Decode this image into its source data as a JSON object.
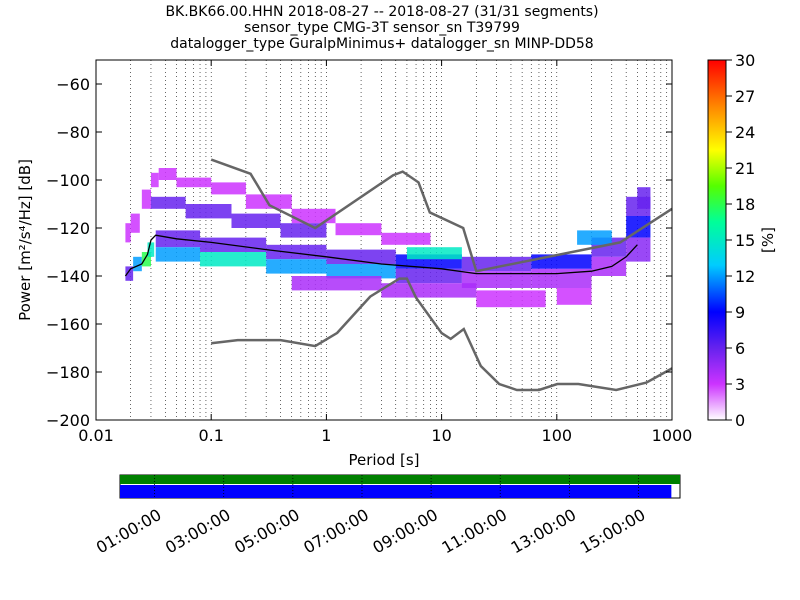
{
  "chart_data": [
    {
      "type": "heatmap",
      "title_lines": [
        "BK.BK66.00.HHN   2018-08-27 -- 2018-08-27  (31/31 segments)",
        "sensor_type CMG-3T sensor_sn T39799",
        "datalogger_type GuralpMinimus+ datalogger_sn MINP-DD58"
      ],
      "xlabel": "Period [s]",
      "ylabel": "Power [m²/s⁴/Hz] [dB]",
      "x_scale": "log",
      "xlim": [
        0.01,
        1000
      ],
      "ylim": [
        -200,
        -50
      ],
      "x_tick_labels": [
        "0.01",
        "0.1",
        "1",
        "10",
        "100",
        "1000"
      ],
      "x_ticks": [
        0.01,
        0.1,
        1,
        10,
        100,
        1000
      ],
      "y_ticks": [
        -60,
        -80,
        -100,
        -120,
        -140,
        -160,
        -180,
        -200
      ],
      "y_tick_labels": [
        "−60",
        "−80",
        "−100",
        "−120",
        "−140",
        "−160",
        "−180",
        "−200"
      ],
      "grid": "dotted vertical lines",
      "colorbar": {
        "label": "[%]",
        "range": [
          0,
          30
        ],
        "ticks": [
          0,
          3,
          6,
          9,
          12,
          15,
          18,
          21,
          24,
          27,
          30
        ],
        "colormap": "pqlx"
      },
      "noise_models": [
        {
          "name": "NHNM",
          "color": "#666666",
          "points": [
            [
              0.1,
              -91.5
            ],
            [
              0.22,
              -97.4
            ],
            [
              0.32,
              -110.5
            ],
            [
              0.8,
              -120
            ],
            [
              3.8,
              -98
            ],
            [
              4.6,
              -96.5
            ],
            [
              6.3,
              -101
            ],
            [
              7.9,
              -113.5
            ],
            [
              15.4,
              -120
            ],
            [
              20,
              -138
            ],
            [
              354.8,
              -126
            ],
            [
              1000,
              -112
            ]
          ]
        },
        {
          "name": "NLNM",
          "color": "#666666",
          "points": [
            [
              0.1,
              -168
            ],
            [
              0.17,
              -166.7
            ],
            [
              0.4,
              -166.7
            ],
            [
              0.8,
              -169.2
            ],
            [
              1.24,
              -163.7
            ],
            [
              2.4,
              -148.6
            ],
            [
              4.3,
              -141.1
            ],
            [
              5,
              -141.1
            ],
            [
              6,
              -149
            ],
            [
              10,
              -163.8
            ],
            [
              12,
              -166.2
            ],
            [
              15.6,
              -162.1
            ],
            [
              21.9,
              -177.5
            ],
            [
              31.6,
              -185
            ],
            [
              45,
              -187.5
            ],
            [
              70,
              -187.5
            ],
            [
              101,
              -185
            ],
            [
              154,
              -185
            ],
            [
              328,
              -187.5
            ],
            [
              600,
              -184.4
            ],
            [
              1000,
              -178.5
            ]
          ]
        }
      ],
      "mode_line": {
        "color": "#000000",
        "points": [
          [
            0.018,
            -140
          ],
          [
            0.02,
            -137
          ],
          [
            0.025,
            -135
          ],
          [
            0.028,
            -131
          ],
          [
            0.03,
            -125
          ],
          [
            0.033,
            -123
          ],
          [
            0.05,
            -124.5
          ],
          [
            0.1,
            -126
          ],
          [
            0.3,
            -129
          ],
          [
            1,
            -132
          ],
          [
            3,
            -135
          ],
          [
            10,
            -137
          ],
          [
            20,
            -139
          ],
          [
            50,
            -139
          ],
          [
            100,
            -139
          ],
          [
            200,
            -138
          ],
          [
            300,
            -136
          ],
          [
            400,
            -132
          ],
          [
            500,
            -127
          ]
        ]
      },
      "psd_cells": [
        {
          "x0": 0.018,
          "x1": 0.021,
          "y0": -142,
          "y1": -136,
          "pct": 6
        },
        {
          "x0": 0.021,
          "x1": 0.025,
          "y0": -138,
          "y1": -132,
          "pct": 12
        },
        {
          "x0": 0.025,
          "x1": 0.03,
          "y0": -136,
          "y1": -130,
          "pct": 18
        },
        {
          "x0": 0.028,
          "x1": 0.032,
          "y0": -132,
          "y1": -126,
          "pct": 15
        },
        {
          "x0": 0.018,
          "x1": 0.02,
          "y0": -126,
          "y1": -118,
          "pct": 3
        },
        {
          "x0": 0.02,
          "x1": 0.024,
          "y0": -122,
          "y1": -114,
          "pct": 3
        },
        {
          "x0": 0.025,
          "x1": 0.03,
          "y0": -112,
          "y1": -104,
          "pct": 3
        },
        {
          "x0": 0.03,
          "x1": 0.035,
          "y0": -103,
          "y1": -97,
          "pct": 3
        },
        {
          "x0": 0.035,
          "x1": 0.05,
          "y0": -100,
          "y1": -95,
          "pct": 3
        },
        {
          "x0": 0.05,
          "x1": 0.1,
          "y0": -103,
          "y1": -99,
          "pct": 3
        },
        {
          "x0": 0.1,
          "x1": 0.2,
          "y0": -106,
          "y1": -101,
          "pct": 3
        },
        {
          "x0": 0.2,
          "x1": 0.5,
          "y0": -112,
          "y1": -106,
          "pct": 3
        },
        {
          "x0": 0.5,
          "x1": 1.2,
          "y0": -118,
          "y1": -112,
          "pct": 3
        },
        {
          "x0": 1.2,
          "x1": 3,
          "y0": -123,
          "y1": -118,
          "pct": 3
        },
        {
          "x0": 3,
          "x1": 8,
          "y0": -127,
          "y1": -122,
          "pct": 3
        },
        {
          "x0": 0.03,
          "x1": 0.06,
          "y0": -112,
          "y1": -107,
          "pct": 6
        },
        {
          "x0": 0.06,
          "x1": 0.15,
          "y0": -116,
          "y1": -110,
          "pct": 6
        },
        {
          "x0": 0.15,
          "x1": 0.4,
          "y0": -120,
          "y1": -114,
          "pct": 6
        },
        {
          "x0": 0.4,
          "x1": 1,
          "y0": -124,
          "y1": -118,
          "pct": 6
        },
        {
          "x0": 0.033,
          "x1": 0.08,
          "y0": -128,
          "y1": -121,
          "pct": 6
        },
        {
          "x0": 0.033,
          "x1": 0.08,
          "y0": -134,
          "y1": -128,
          "pct": 12
        },
        {
          "x0": 0.08,
          "x1": 0.3,
          "y0": -130,
          "y1": -124,
          "pct": 6
        },
        {
          "x0": 0.08,
          "x1": 0.3,
          "y0": -136,
          "y1": -130,
          "pct": 15
        },
        {
          "x0": 0.3,
          "x1": 1,
          "y0": -133,
          "y1": -127,
          "pct": 6
        },
        {
          "x0": 0.3,
          "x1": 1,
          "y0": -139,
          "y1": -133,
          "pct": 12
        },
        {
          "x0": 1,
          "x1": 4,
          "y0": -135,
          "y1": -129,
          "pct": 6
        },
        {
          "x0": 1,
          "x1": 4,
          "y0": -141,
          "y1": -135,
          "pct": 12
        },
        {
          "x0": 4,
          "x1": 15,
          "y0": -137,
          "y1": -131,
          "pct": 9
        },
        {
          "x0": 4,
          "x1": 15,
          "y0": -143,
          "y1": -137,
          "pct": 6
        },
        {
          "x0": 0.5,
          "x1": 3,
          "y0": -146,
          "y1": -140,
          "pct": 4
        },
        {
          "x0": 3,
          "x1": 20,
          "y0": -149,
          "y1": -143,
          "pct": 4
        },
        {
          "x0": 15,
          "x1": 60,
          "y0": -138,
          "y1": -132,
          "pct": 6
        },
        {
          "x0": 15,
          "x1": 60,
          "y0": -145,
          "y1": -138,
          "pct": 4
        },
        {
          "x0": 20,
          "x1": 80,
          "y0": -153,
          "y1": -146,
          "pct": 3
        },
        {
          "x0": 60,
          "x1": 200,
          "y0": -137,
          "y1": -131,
          "pct": 9
        },
        {
          "x0": 60,
          "x1": 200,
          "y0": -145,
          "y1": -137,
          "pct": 4
        },
        {
          "x0": 100,
          "x1": 200,
          "y0": -152,
          "y1": -145,
          "pct": 3
        },
        {
          "x0": 200,
          "x1": 400,
          "y0": -132,
          "y1": -124,
          "pct": 6
        },
        {
          "x0": 200,
          "x1": 400,
          "y0": -140,
          "y1": -132,
          "pct": 4
        },
        {
          "x0": 400,
          "x1": 650,
          "y0": -115,
          "y1": -107,
          "pct": 6
        },
        {
          "x0": 400,
          "x1": 650,
          "y0": -124,
          "y1": -115,
          "pct": 9
        },
        {
          "x0": 400,
          "x1": 650,
          "y0": -134,
          "y1": -124,
          "pct": 5
        },
        {
          "x0": 500,
          "x1": 650,
          "y0": -112,
          "y1": -103,
          "pct": 6
        },
        {
          "x0": 150,
          "x1": 300,
          "y0": -127,
          "y1": -121,
          "pct": 12
        },
        {
          "x0": 5,
          "x1": 15,
          "y0": -133,
          "y1": -128,
          "pct": 15
        }
      ]
    },
    {
      "type": "timeline",
      "x_tick_labels": [
        "01:00:00",
        "03:00:00",
        "05:00:00",
        "07:00:00",
        "09:00:00",
        "11:00:00",
        "13:00:00",
        "15:00:00"
      ],
      "x_ticks_hours": [
        1,
        3,
        5,
        7,
        9,
        11,
        13,
        15
      ],
      "time_range_hours": [
        0,
        16.2
      ],
      "bars": [
        {
          "row": "top",
          "color": "#008000",
          "start_hour": 0,
          "end_hour": 16.2
        },
        {
          "row": "bottom",
          "color": "#0000ff",
          "start_hour": 0,
          "end_hour": 15.95
        }
      ]
    }
  ]
}
